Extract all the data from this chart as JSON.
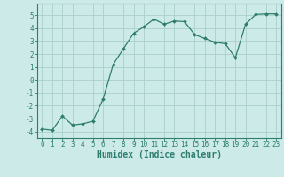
{
  "x": [
    0,
    1,
    2,
    3,
    4,
    5,
    6,
    7,
    8,
    9,
    10,
    11,
    12,
    13,
    14,
    15,
    16,
    17,
    18,
    19,
    20,
    21,
    22,
    23
  ],
  "y": [
    -3.8,
    -3.9,
    -2.8,
    -3.5,
    -3.4,
    -3.2,
    -1.5,
    1.2,
    2.4,
    3.6,
    4.1,
    4.7,
    4.3,
    4.55,
    4.5,
    3.5,
    3.2,
    2.9,
    2.8,
    1.7,
    4.3,
    5.05,
    5.1,
    5.1
  ],
  "line_color": "#2e7d6e",
  "marker": "D",
  "marker_size": 2.0,
  "bg_color": "#cceae7",
  "grid_color": "#aacfcb",
  "xlabel": "Humidex (Indice chaleur)",
  "xlim": [
    -0.5,
    23.5
  ],
  "ylim": [
    -4.5,
    5.9
  ],
  "yticks": [
    -4,
    -3,
    -2,
    -1,
    0,
    1,
    2,
    3,
    4,
    5
  ],
  "xticks": [
    0,
    1,
    2,
    3,
    4,
    5,
    6,
    7,
    8,
    9,
    10,
    11,
    12,
    13,
    14,
    15,
    16,
    17,
    18,
    19,
    20,
    21,
    22,
    23
  ],
  "tick_label_fontsize": 5.5,
  "xlabel_fontsize": 7.0,
  "linewidth": 0.9
}
